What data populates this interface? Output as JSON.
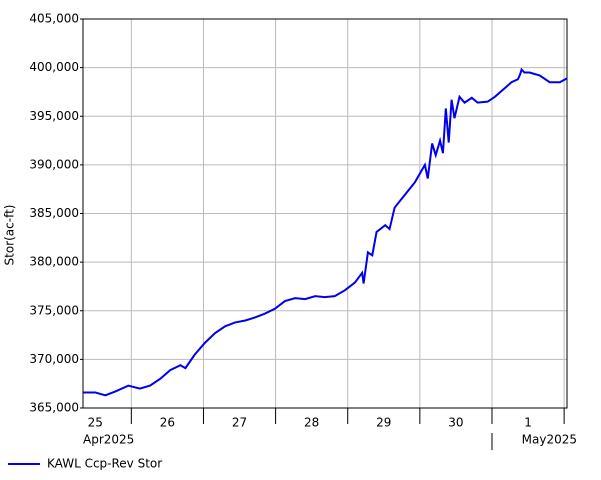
{
  "chart_data": {
    "type": "line",
    "y_label": "Stor(ac-ft)",
    "x": [
      0.33,
      0.5,
      0.64,
      0.78,
      0.96,
      1.12,
      1.26,
      1.4,
      1.54,
      1.68,
      1.75,
      1.88,
      2.02,
      2.16,
      2.3,
      2.44,
      2.58,
      2.71,
      2.85,
      2.99,
      3.13,
      3.27,
      3.41,
      3.55,
      3.68,
      3.82,
      3.96,
      4.1,
      4.2,
      4.22,
      4.28,
      4.34,
      4.4,
      4.52,
      4.58,
      4.65,
      4.79,
      4.93,
      5.07,
      5.11,
      5.17,
      5.22,
      5.28,
      5.32,
      5.36,
      5.4,
      5.44,
      5.48,
      5.55,
      5.62,
      5.72,
      5.8,
      5.94,
      6.04,
      6.18,
      6.27,
      6.36,
      6.39,
      6.41,
      6.45,
      6.52,
      6.66,
      6.8,
      6.94,
      7.04
    ],
    "series": [
      {
        "name": "KAWL Ccp-Rev Stor",
        "color": "#0000ee",
        "values": [
          366600,
          366600,
          366300,
          366700,
          367300,
          367000,
          367300,
          368000,
          368900,
          369400,
          369100,
          370500,
          371700,
          372700,
          373400,
          373800,
          374000,
          374300,
          374700,
          375200,
          376000,
          376300,
          376200,
          376500,
          376400,
          376500,
          377100,
          377900,
          378900,
          377800,
          381000,
          380700,
          383100,
          383800,
          383400,
          385600,
          386900,
          388200,
          390000,
          388600,
          392200,
          391000,
          392500,
          391200,
          395800,
          392300,
          396700,
          394800,
          397000,
          396400,
          396900,
          396400,
          396500,
          397000,
          397900,
          398500,
          398800,
          399300,
          399800,
          399500,
          399500,
          399200,
          398500,
          398500,
          398900
        ]
      }
    ],
    "xlim": [
      0.33,
      7.04
    ],
    "xticks": [
      1,
      2,
      3,
      4,
      5,
      6,
      7
    ],
    "x_day_labels": [
      {
        "value": 0.5,
        "label": "25"
      },
      {
        "value": 1.5,
        "label": "26"
      },
      {
        "value": 2.5,
        "label": "27"
      },
      {
        "value": 3.5,
        "label": "28"
      },
      {
        "value": 4.5,
        "label": "29"
      },
      {
        "value": 5.5,
        "label": "30"
      },
      {
        "value": 6.5,
        "label": "1"
      }
    ],
    "x_month_labels": [
      "Apr2025",
      "May2025"
    ],
    "ylim": [
      365000,
      405000
    ],
    "yticks": [
      {
        "value": 365000,
        "label": "365,000"
      },
      {
        "value": 370000,
        "label": "370,000"
      },
      {
        "value": 375000,
        "label": "375,000"
      },
      {
        "value": 380000,
        "label": "380,000"
      },
      {
        "value": 385000,
        "label": "385,000"
      },
      {
        "value": 390000,
        "label": "390,000"
      },
      {
        "value": 395000,
        "label": "395,000"
      },
      {
        "value": 400000,
        "label": "400,000"
      },
      {
        "value": 405000,
        "label": "405,000"
      }
    ],
    "grid": true
  }
}
